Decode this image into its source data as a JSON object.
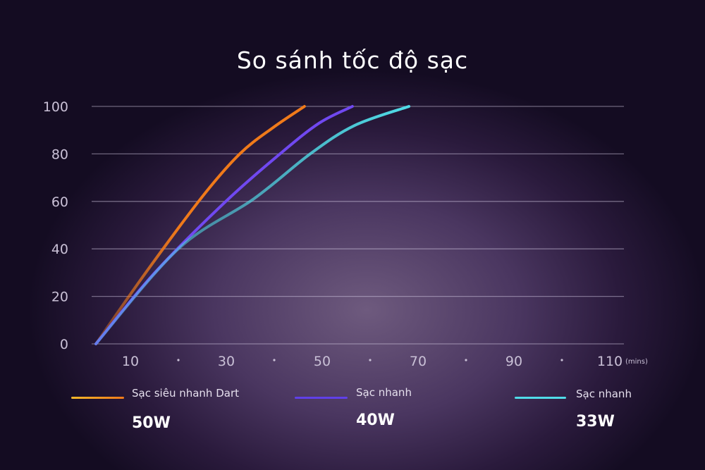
{
  "chart_data": {
    "type": "line",
    "title": "So sánh tốc độ sạc",
    "x_unit": "(mins)",
    "x_ticks": [
      10,
      30,
      50,
      70,
      90,
      110
    ],
    "x_minor_dots": [
      20,
      40,
      60,
      80,
      100
    ],
    "y_ticks": [
      0,
      20,
      40,
      60,
      80,
      100
    ],
    "xlim": [
      0,
      112
    ],
    "ylim": [
      0,
      100
    ],
    "grid": true,
    "legend_position": "bottom",
    "series": [
      {
        "name": "Sạc siêu nhanh Dart",
        "power": "50W",
        "color": "#f07a1a",
        "legend_color_start": "#f5b82a",
        "points": [
          [
            2.8,
            0
          ],
          [
            13.2,
            30
          ],
          [
            25,
            62
          ],
          [
            32.8,
            80
          ],
          [
            39.7,
            91
          ],
          [
            46.3,
            100
          ]
        ]
      },
      {
        "name": "Sạc nhanh",
        "power": "40W",
        "color": "#7048f0",
        "legend_color_start": "#5a3ae0",
        "points": [
          [
            2.8,
            0
          ],
          [
            15.1,
            30
          ],
          [
            29.9,
            60
          ],
          [
            41.2,
            80
          ],
          [
            49.4,
            93
          ],
          [
            56.3,
            100
          ]
        ]
      },
      {
        "name": "Sạc nhanh",
        "power": "33W",
        "color": "#50dce8",
        "legend_color_start": "#50dce8",
        "points": [
          [
            2.8,
            0
          ],
          [
            20,
            40
          ],
          [
            35.7,
            61
          ],
          [
            47.5,
            80
          ],
          [
            56.8,
            92
          ],
          [
            68.1,
            100
          ]
        ]
      }
    ]
  }
}
